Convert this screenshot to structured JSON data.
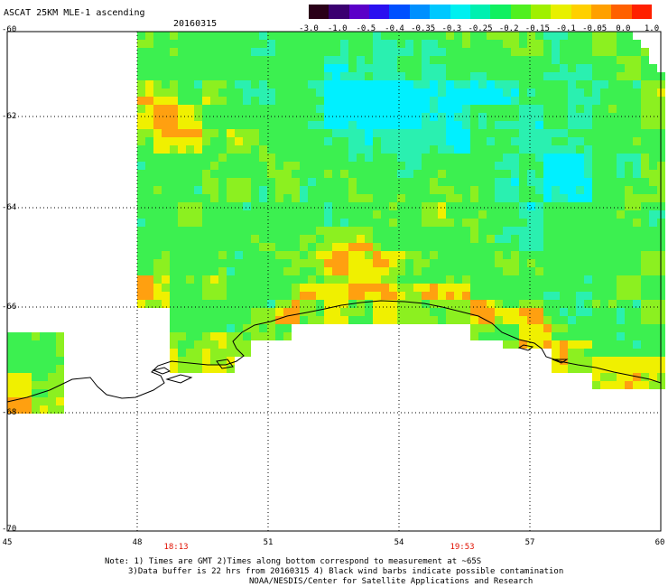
{
  "header": {
    "title": "ASCAT 25KM MLE-1 ascending",
    "date": "20160315"
  },
  "colorbar": {
    "labels": [
      "-3.0",
      "-1.0",
      "-0.5",
      "-0.4",
      "-0.35",
      "-0.3",
      "-0.25",
      "-0.2",
      "-0.15",
      "-0.1",
      "-0.05",
      "0.0",
      "1.0"
    ],
    "colors": [
      "#2a0018",
      "#3a0070",
      "#5a00c8",
      "#2a10f0",
      "#0050ff",
      "#0090ff",
      "#00c8ff",
      "#00f0f0",
      "#00f0b0",
      "#10f060",
      "#50f020",
      "#a0f000",
      "#e8f000",
      "#ffd000",
      "#ffa000",
      "#ff6000",
      "#ff2000"
    ]
  },
  "axes": {
    "latitude_labels": [
      "-60",
      "-62",
      "-64",
      "-66",
      "-68",
      "-70"
    ],
    "longitude_labels": [
      "45",
      "48",
      "51",
      "54",
      "57",
      "60"
    ]
  },
  "times": [
    "18:13",
    "19:53"
  ],
  "notes": {
    "line1": "Note: 1) Times are GMT 2)Times along bottom correspond to measurement at ~65S",
    "line2": "3)Data buffer is 22 hrs from 20160315 4) Black wind barbs indicate possible contamination",
    "line3": "NOAA/NESDIS/Center for Satellite Applications and Research"
  },
  "map": {
    "data_colors": {
      "low": "#00f0ff",
      "mid_low": "#2af0b0",
      "mid": "#3cf050",
      "mid_high": "#8cf020",
      "high": "#f0f000",
      "very_high": "#ffa010"
    },
    "coastline_color": "#000000",
    "grid": true
  }
}
